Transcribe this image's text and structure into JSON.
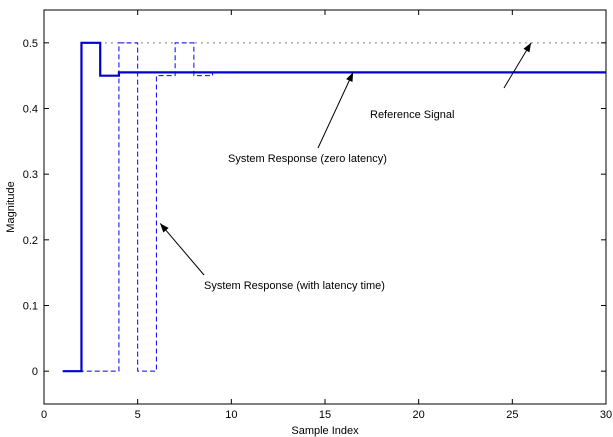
{
  "chart_data": {
    "type": "line",
    "title": "",
    "xlabel": "Sample Index",
    "ylabel": "Magnitude",
    "xlim": [
      0,
      30
    ],
    "ylim": [
      -0.05,
      0.55
    ],
    "xticks": [
      0,
      5,
      10,
      15,
      20,
      25,
      30
    ],
    "yticks": [
      0,
      0.1,
      0.2,
      0.3,
      0.4,
      0.5
    ],
    "x_tick_labels": [
      "0",
      "5",
      "10",
      "15",
      "20",
      "25",
      "30"
    ],
    "y_tick_labels": [
      "0",
      "0.1",
      "0.2",
      "0.3",
      "0.4",
      "0.5"
    ],
    "grid": false,
    "series": [
      {
        "style": "dotted",
        "color": "#000000",
        "step": true,
        "x": [
          2,
          30
        ],
        "y": [
          0.5,
          0.5
        ]
      },
      {
        "style": "solid",
        "color": "#0000cc",
        "step": true,
        "x": [
          1,
          2,
          3,
          4,
          5,
          30
        ],
        "y": [
          0,
          0.5,
          0.45,
          0.455,
          0.455,
          0.455
        ]
      },
      {
        "style": "dashed",
        "color": "#0000ff",
        "step": true,
        "x": [
          1,
          4,
          5,
          6,
          7,
          8,
          9,
          10
        ],
        "y": [
          0,
          0.5,
          0,
          0.45,
          0.5,
          0.45,
          0.455,
          0.455
        ]
      }
    ],
    "annotations": [
      {
        "text": "Reference Signal",
        "point": [
          26,
          0.5
        ]
      },
      {
        "text": "System Response (zero latency)",
        "point": [
          16.5,
          0.455
        ]
      },
      {
        "text": "System Response (with latency time)",
        "point": [
          6.2,
          0.225
        ]
      }
    ]
  }
}
